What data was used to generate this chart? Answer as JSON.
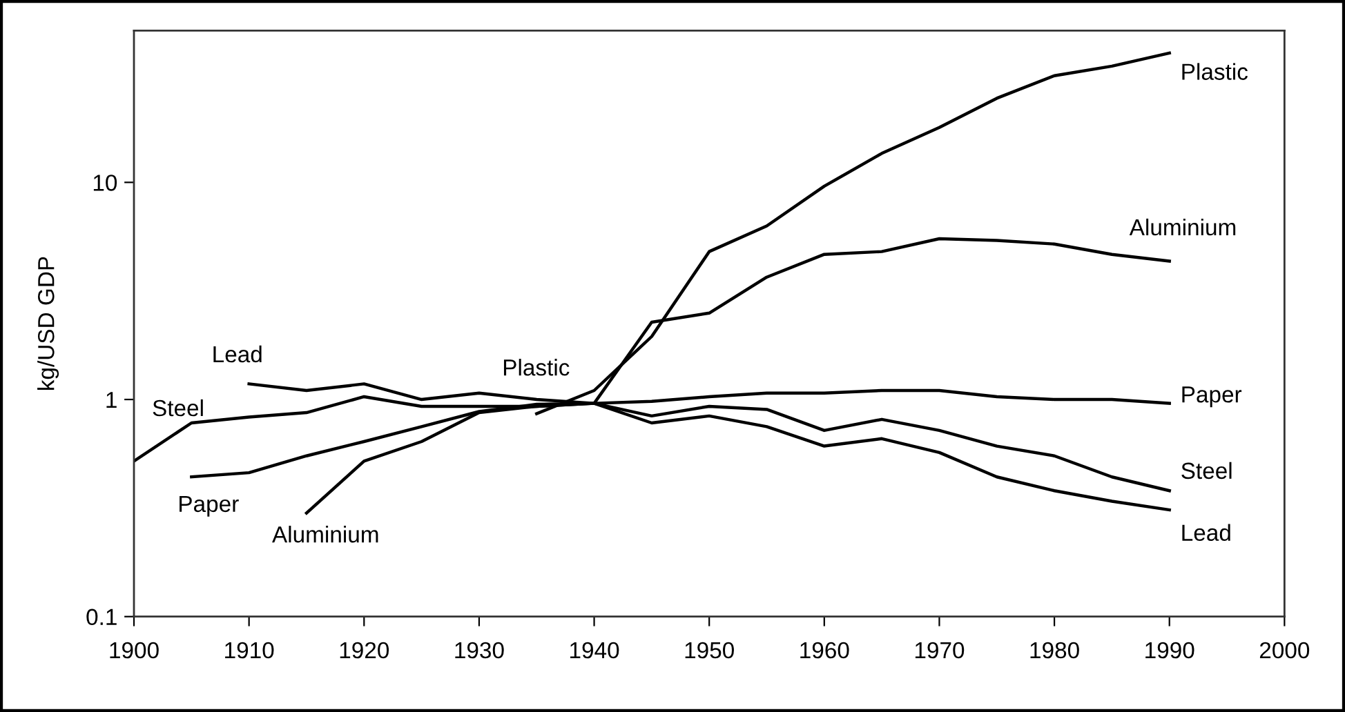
{
  "chart_data": {
    "type": "line",
    "ylabel": "kg/USD GDP",
    "log": "y",
    "xlim": [
      1900,
      2000
    ],
    "xticks": [
      1900,
      1910,
      1920,
      1930,
      1940,
      1950,
      1960,
      1970,
      1980,
      1990,
      2000
    ],
    "ylim": [
      0.1,
      50
    ],
    "yticks": [
      0.1,
      1,
      10
    ],
    "grid": false,
    "marker": "none",
    "line_style": "solid",
    "series": [
      {
        "name": "Steel",
        "color": "#000000",
        "x": [
          1900,
          1905,
          1910,
          1915,
          1920,
          1925,
          1930,
          1935,
          1940,
          1945,
          1950,
          1955,
          1960,
          1965,
          1970,
          1975,
          1980,
          1985,
          1990
        ],
        "values": [
          0.52,
          0.78,
          0.83,
          0.87,
          1.03,
          0.93,
          0.93,
          0.93,
          0.96,
          0.84,
          0.93,
          0.9,
          0.72,
          0.81,
          0.72,
          0.61,
          0.55,
          0.44,
          0.38
        ]
      },
      {
        "name": "Lead",
        "color": "#000000",
        "x": [
          1910,
          1915,
          1920,
          1925,
          1930,
          1935,
          1940,
          1945,
          1950,
          1955,
          1960,
          1965,
          1970,
          1975,
          1980,
          1985,
          1990
        ],
        "values": [
          1.18,
          1.1,
          1.18,
          1.0,
          1.07,
          1.0,
          0.96,
          0.78,
          0.84,
          0.75,
          0.61,
          0.66,
          0.57,
          0.44,
          0.38,
          0.34,
          0.31
        ]
      },
      {
        "name": "Paper",
        "color": "#000000",
        "x": [
          1905,
          1910,
          1915,
          1920,
          1925,
          1930,
          1935,
          1940,
          1945,
          1950,
          1955,
          1960,
          1965,
          1970,
          1975,
          1980,
          1985,
          1990
        ],
        "values": [
          0.44,
          0.46,
          0.55,
          0.64,
          0.75,
          0.88,
          0.95,
          0.96,
          0.98,
          1.03,
          1.07,
          1.07,
          1.1,
          1.1,
          1.03,
          1.0,
          1.0,
          0.96
        ]
      },
      {
        "name": "Aluminium",
        "color": "#000000",
        "x": [
          1915,
          1920,
          1925,
          1930,
          1935,
          1940,
          1945,
          1950,
          1955,
          1960,
          1965,
          1970,
          1975,
          1980,
          1985,
          1990
        ],
        "values": [
          0.3,
          0.52,
          0.64,
          0.87,
          0.93,
          0.96,
          2.27,
          2.5,
          3.66,
          4.66,
          4.8,
          5.5,
          5.4,
          5.2,
          4.66,
          4.34
        ]
      },
      {
        "name": "Plastic",
        "color": "#000000",
        "x": [
          1935,
          1940,
          1945,
          1950,
          1955,
          1960,
          1965,
          1970,
          1975,
          1980,
          1985,
          1990
        ],
        "values": [
          0.86,
          1.1,
          1.95,
          4.8,
          6.3,
          9.6,
          13.6,
          17.9,
          24.4,
          31,
          34.3,
          39.4
        ]
      }
    ]
  }
}
